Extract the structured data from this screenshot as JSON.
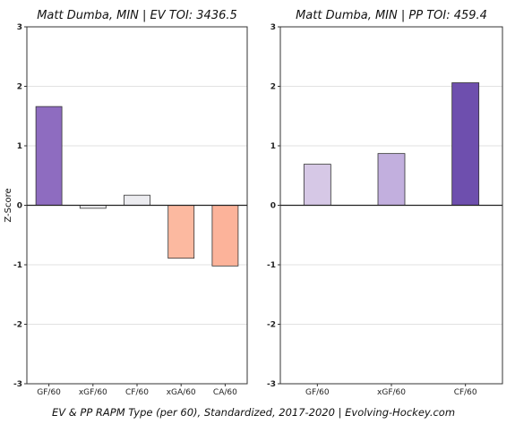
{
  "chart_data": [
    {
      "type": "bar",
      "title": "Matt Dumba, MIN  |  EV TOI: 3436.5",
      "ylabel": "Z-Score",
      "ylim": [
        -3,
        3
      ],
      "yticks": [
        3,
        2,
        1,
        0,
        -1,
        -2,
        -3
      ],
      "grid": true,
      "categories": [
        "GF/60",
        "xGF/60",
        "CF/60",
        "xGA/60",
        "CA/60"
      ],
      "values": [
        1.66,
        -0.05,
        0.17,
        -0.89,
        -1.02
      ],
      "colors": [
        "#8e6cc0",
        "#f4f4f6",
        "#ececf0",
        "#fcb9a0",
        "#fcb39a"
      ]
    },
    {
      "type": "bar",
      "title": "Matt Dumba, MIN  |  PP TOI: 459.4",
      "ylim": [
        -3,
        3
      ],
      "yticks": [
        3,
        2,
        1,
        0,
        -1,
        -2,
        -3
      ],
      "grid": true,
      "categories": [
        "GF/60",
        "xGF/60",
        "CF/60"
      ],
      "values": [
        0.69,
        0.87,
        2.06
      ],
      "colors": [
        "#d6c8e6",
        "#c2afde",
        "#6e4fae"
      ]
    }
  ],
  "caption": "EV & PP RAPM Type (per 60), Standardized, 2017-2020    |    Evolving-Hockey.com"
}
